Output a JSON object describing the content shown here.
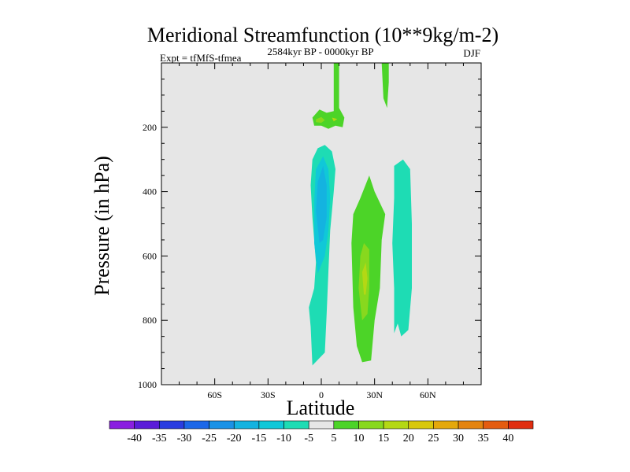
{
  "chart_data": {
    "type": "heatmap",
    "title": "Meridional Streamfunction (10**9kg/m-2)",
    "left_subtitle": "Expt = tfMfS-tfmea",
    "center_subtitle": "2584kyr BP - 0000kyr BP",
    "right_subtitle": "DJF",
    "xlabel": "Latitude",
    "ylabel": "Pressure (in hPa)",
    "xlim": [
      -90,
      90
    ],
    "ylim": [
      1000,
      0
    ],
    "x_ticks": [
      {
        "value": -60,
        "label": "60S"
      },
      {
        "value": -30,
        "label": "30S"
      },
      {
        "value": 0,
        "label": "0"
      },
      {
        "value": 30,
        "label": "30N"
      },
      {
        "value": 60,
        "label": "60N"
      }
    ],
    "y_ticks": [
      {
        "value": 200,
        "label": "200"
      },
      {
        "value": 400,
        "label": "400"
      },
      {
        "value": 600,
        "label": "600"
      },
      {
        "value": 800,
        "label": "800"
      },
      {
        "value": 1000,
        "label": "1000"
      }
    ],
    "background_color": "#e6e6e6",
    "colorbar": {
      "labels": [
        "-40",
        "-35",
        "-30",
        "-25",
        "-20",
        "-15",
        "-10",
        "-5",
        "5",
        "10",
        "15",
        "20",
        "25",
        "30",
        "35",
        "40"
      ],
      "colors": [
        "#8a1ee0",
        "#5a1cd8",
        "#2a3de0",
        "#1c67e8",
        "#1a92e6",
        "#14b3e0",
        "#10c8d8",
        "#1edcb4",
        "#e6e6e6",
        "#4cd428",
        "#88d81e",
        "#b4d814",
        "#d8c80c",
        "#e4a80c",
        "#e48410",
        "#e45c10",
        "#e02e10"
      ]
    },
    "regions": [
      {
        "name": "tropical-negative-cell",
        "color": "#1edcb4",
        "points": [
          [
            -5,
            940
          ],
          [
            -6,
            820
          ],
          [
            -7,
            760
          ],
          [
            -4,
            700
          ],
          [
            -3,
            620
          ],
          [
            -5,
            480
          ],
          [
            -6,
            380
          ],
          [
            -5,
            300
          ],
          [
            -2,
            265
          ],
          [
            2,
            255
          ],
          [
            6,
            275
          ],
          [
            8,
            330
          ],
          [
            7,
            400
          ],
          [
            5,
            520
          ],
          [
            4,
            650
          ],
          [
            3,
            780
          ],
          [
            2,
            900
          ]
        ]
      },
      {
        "name": "tropical-negative-core-outer",
        "color": "#10c8d8",
        "points": [
          [
            -2,
            655
          ],
          [
            -4,
            560
          ],
          [
            -4,
            430
          ],
          [
            -3,
            330
          ],
          [
            1,
            290
          ],
          [
            4,
            330
          ],
          [
            5,
            420
          ],
          [
            4,
            520
          ],
          [
            2,
            600
          ]
        ]
      },
      {
        "name": "tropical-negative-core-inner",
        "color": "#14b3e0",
        "points": [
          [
            -1,
            560
          ],
          [
            -3,
            460
          ],
          [
            -2,
            370
          ],
          [
            1,
            320
          ],
          [
            3,
            380
          ],
          [
            3,
            480
          ],
          [
            1,
            550
          ]
        ]
      },
      {
        "name": "equatorial-updraft",
        "color": "#4cd428",
        "points": [
          [
            7,
            0
          ],
          [
            10,
            0
          ],
          [
            10,
            100
          ],
          [
            10,
            140
          ],
          [
            13,
            170
          ],
          [
            12,
            200
          ],
          [
            8,
            195
          ],
          [
            4,
            205
          ],
          [
            0,
            195
          ],
          [
            -4,
            195
          ],
          [
            -5,
            170
          ],
          [
            -1,
            145
          ],
          [
            3,
            155
          ],
          [
            7,
            150
          ]
        ]
      },
      {
        "name": "equatorial-updraft-core-left",
        "color": "#88d81e",
        "points": [
          [
            -3,
            175
          ],
          [
            0,
            168
          ],
          [
            2,
            178
          ],
          [
            0,
            186
          ],
          [
            -3,
            184
          ]
        ]
      },
      {
        "name": "equatorial-updraft-core-right",
        "color": "#b4d814",
        "points": [
          [
            6,
            170
          ],
          [
            9,
            174
          ],
          [
            7,
            182
          ]
        ]
      },
      {
        "name": "upper-nh-positive-strip",
        "color": "#4cd428",
        "points": [
          [
            34,
            0
          ],
          [
            38,
            0
          ],
          [
            38,
            60
          ],
          [
            37,
            140
          ],
          [
            35,
            110
          ]
        ]
      },
      {
        "name": "nh-positive-cell",
        "color": "#4cd428",
        "points": [
          [
            17,
            560
          ],
          [
            18,
            470
          ],
          [
            22,
            420
          ],
          [
            27,
            350
          ],
          [
            30,
            400
          ],
          [
            36,
            470
          ],
          [
            34,
            550
          ],
          [
            33,
            700
          ],
          [
            30,
            800
          ],
          [
            28,
            925
          ],
          [
            23,
            930
          ],
          [
            20,
            880
          ],
          [
            18,
            760
          ]
        ]
      },
      {
        "name": "nh-positive-core",
        "color": "#88d81e",
        "points": [
          [
            23,
            800
          ],
          [
            21,
            700
          ],
          [
            22,
            600
          ],
          [
            24,
            560
          ],
          [
            27,
            580
          ],
          [
            27,
            700
          ],
          [
            26,
            780
          ]
        ]
      },
      {
        "name": "nh-positive-inner",
        "color": "#b4d814",
        "points": [
          [
            24,
            720
          ],
          [
            23,
            650
          ],
          [
            25,
            620
          ],
          [
            26,
            670
          ],
          [
            25,
            720
          ]
        ]
      },
      {
        "name": "nh-negative-cell",
        "color": "#1edcb4",
        "points": [
          [
            41,
            840
          ],
          [
            41,
            700
          ],
          [
            40,
            560
          ],
          [
            41,
            420
          ],
          [
            41,
            320
          ],
          [
            46,
            300
          ],
          [
            50,
            330
          ],
          [
            51,
            500
          ],
          [
            51,
            700
          ],
          [
            49,
            830
          ],
          [
            45,
            850
          ],
          [
            43,
            810
          ]
        ]
      }
    ]
  }
}
